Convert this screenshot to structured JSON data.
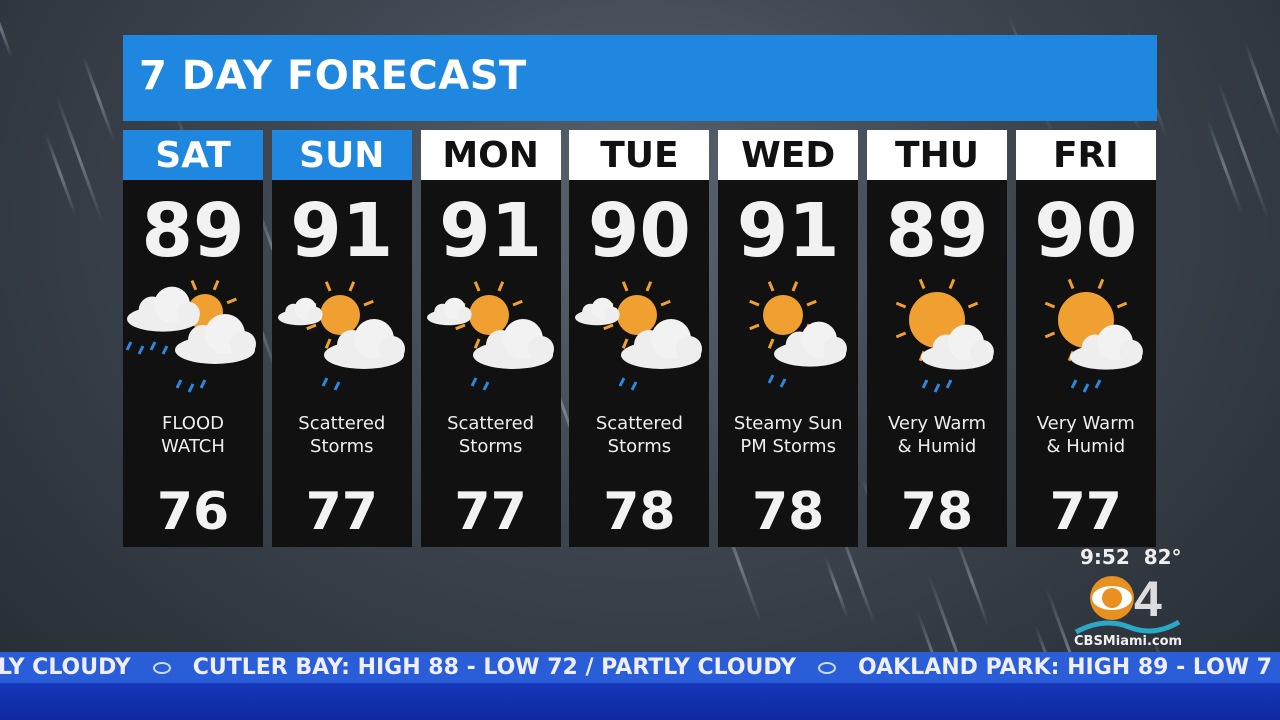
{
  "header": {
    "title": "7 DAY FORECAST"
  },
  "days": [
    {
      "day": "SAT",
      "high": "89",
      "low": "76",
      "desc1": "FLOOD",
      "desc2": "WATCH",
      "highlight": true,
      "icon": "heavy-rain-clouds-sun-icon"
    },
    {
      "day": "SUN",
      "high": "91",
      "low": "77",
      "desc1": "Scattered",
      "desc2": "Storms",
      "highlight": true,
      "icon": "sun-clouds-rain-icon"
    },
    {
      "day": "MON",
      "high": "91",
      "low": "77",
      "desc1": "Scattered",
      "desc2": "Storms",
      "highlight": false,
      "icon": "sun-clouds-rain-icon"
    },
    {
      "day": "TUE",
      "high": "90",
      "low": "78",
      "desc1": "Scattered",
      "desc2": "Storms",
      "highlight": false,
      "icon": "sun-clouds-rain-icon"
    },
    {
      "day": "WED",
      "high": "91",
      "low": "78",
      "desc1": "Steamy Sun",
      "desc2": "PM Storms",
      "highlight": false,
      "icon": "sun-cloud-rain-icon"
    },
    {
      "day": "THU",
      "high": "89",
      "low": "78",
      "desc1": "Very Warm",
      "desc2": "& Humid",
      "highlight": false,
      "icon": "big-sun-cloud-rain-icon"
    },
    {
      "day": "FRI",
      "high": "90",
      "low": "77",
      "desc1": "Very Warm",
      "desc2": "& Humid",
      "highlight": false,
      "icon": "big-sun-cloud-rain-icon"
    }
  ],
  "status": {
    "time": "9:52",
    "temp": "82°",
    "site": "CBSMiami.com",
    "logo": "CBS 4"
  },
  "ticker": [
    "LY CLOUDY",
    "CUTLER BAY: HIGH 88 - LOW 72 / PARTLY CLOUDY",
    "OAKLAND PARK: HIGH 89 - LOW 7"
  ],
  "colors": {
    "accent": "#1f87e0",
    "sun": "#f0a030",
    "rain": "#2e86de",
    "ticker": "#2a5ed8"
  }
}
